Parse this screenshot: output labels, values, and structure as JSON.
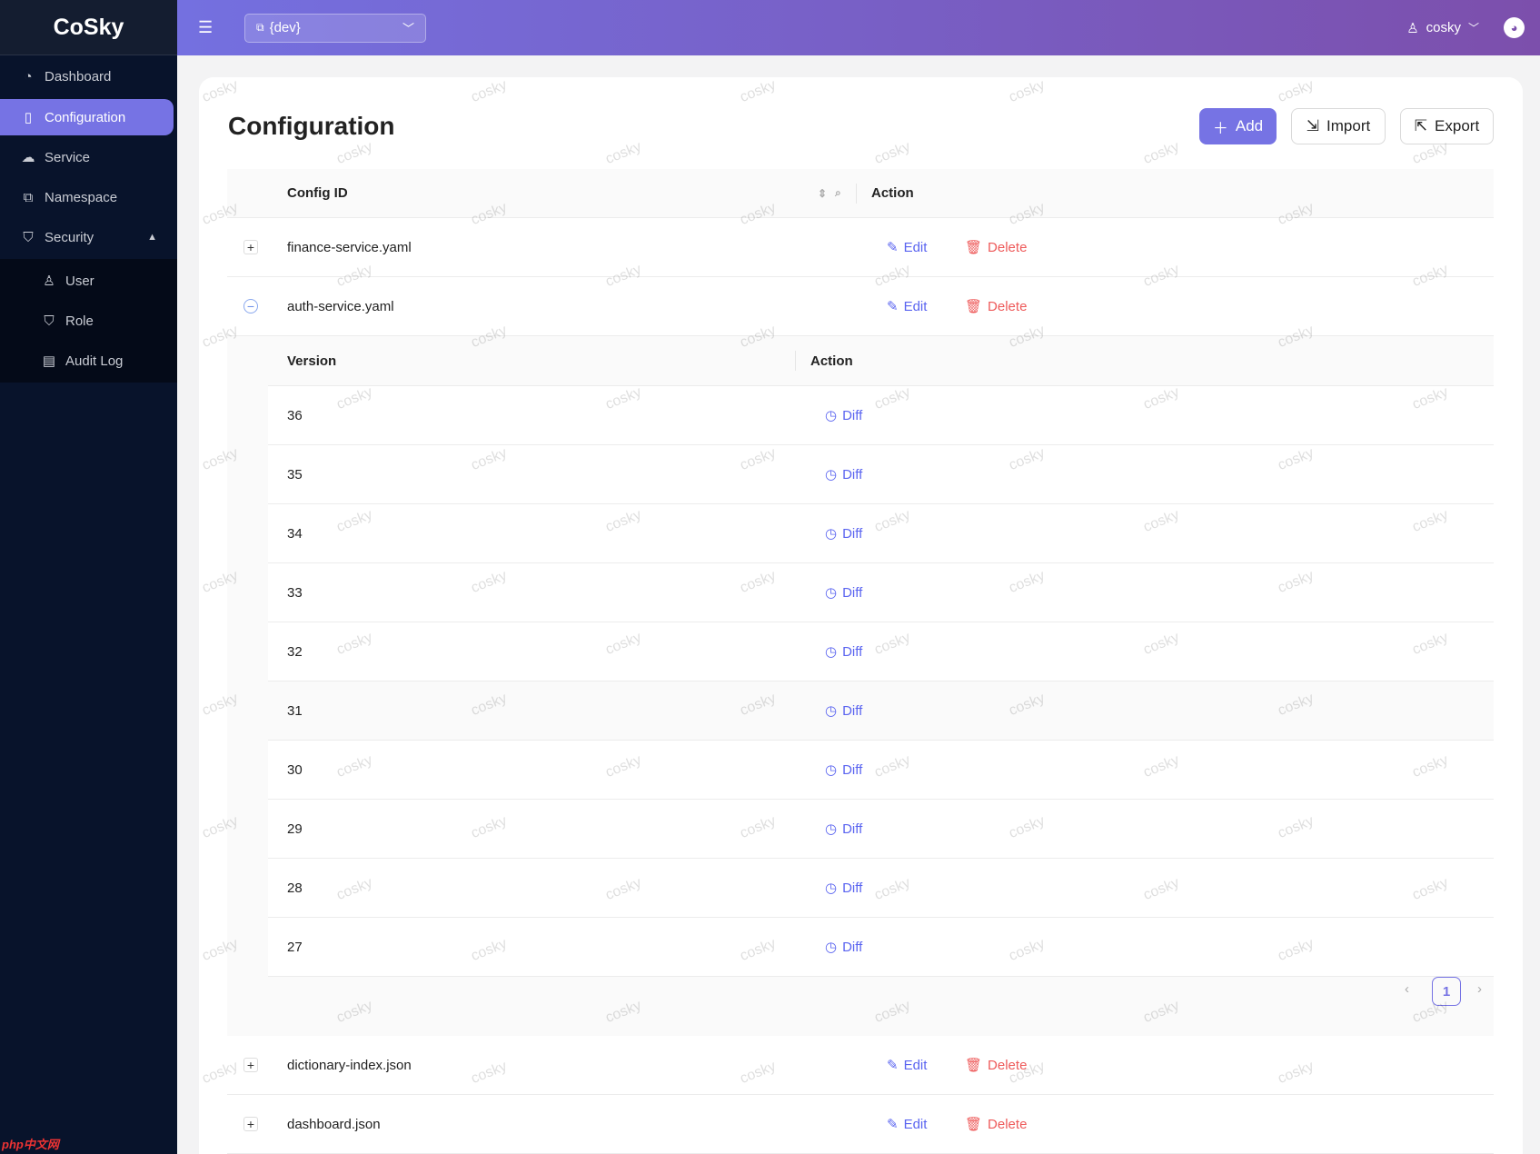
{
  "app": {
    "name": "CoSky",
    "watermark": "cosky",
    "corner_logo": "php中文网"
  },
  "sidebar": {
    "items": [
      {
        "label": "Dashboard",
        "icon": "dashboard-icon"
      },
      {
        "label": "Configuration",
        "icon": "file-icon",
        "active": true
      },
      {
        "label": "Service",
        "icon": "cloud-server-icon"
      },
      {
        "label": "Namespace",
        "icon": "cluster-icon"
      },
      {
        "label": "Security",
        "icon": "shield-icon",
        "expanded": true
      }
    ],
    "security_items": [
      {
        "label": "User",
        "icon": "user-icon"
      },
      {
        "label": "Role",
        "icon": "shield-icon"
      },
      {
        "label": "Audit Log",
        "icon": "audit-icon"
      }
    ]
  },
  "header": {
    "namespace": "{dev}",
    "user": "cosky"
  },
  "page": {
    "title": "Configuration",
    "add": "Add",
    "import": "Import",
    "export": "Export"
  },
  "table": {
    "col_config_id": "Config ID",
    "col_action": "Action",
    "edit": "Edit",
    "delete": "Delete",
    "rows": [
      "finance-service.yaml",
      "auth-service.yaml",
      "dictionary-index.json",
      "dashboard.json"
    ],
    "expanded_row": "auth-service.yaml",
    "nested": {
      "col_version": "Version",
      "col_action": "Action",
      "diff": "Diff",
      "versions": [
        "36",
        "35",
        "34",
        "33",
        "32",
        "31",
        "30",
        "29",
        "28",
        "27"
      ],
      "current_page": "1"
    }
  },
  "colors": {
    "accent": "#7673e4",
    "link": "#5a64f0",
    "danger": "#ee5a5a",
    "sidebar": "#08132b"
  }
}
